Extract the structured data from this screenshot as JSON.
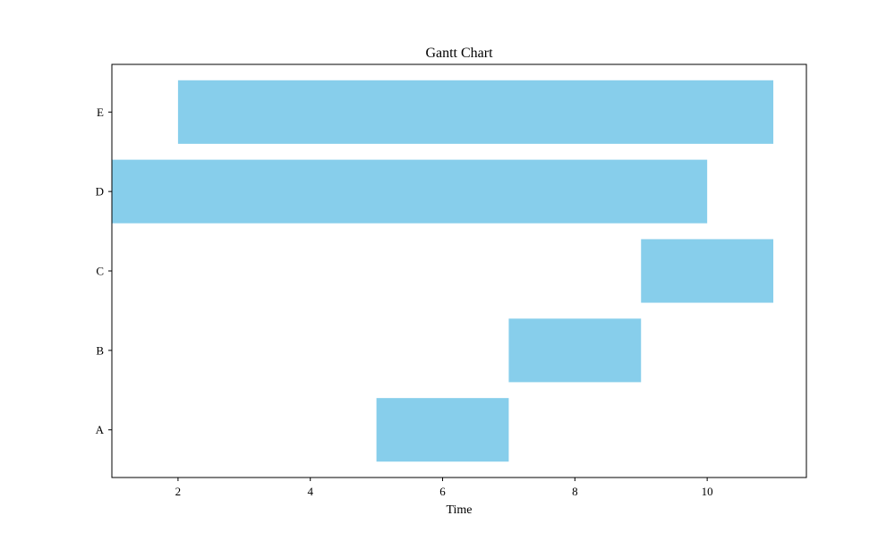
{
  "chart_data": {
    "type": "bar",
    "orientation": "horizontal",
    "title": "Gantt Chart",
    "xlabel": "Time",
    "ylabel": "",
    "xlim": [
      1,
      11.5
    ],
    "xticks": [
      2,
      4,
      6,
      8,
      10
    ],
    "categories": [
      "A",
      "B",
      "C",
      "D",
      "E"
    ],
    "tasks": [
      {
        "name": "A",
        "start": 5,
        "end": 7
      },
      {
        "name": "B",
        "start": 7,
        "end": 9
      },
      {
        "name": "C",
        "start": 9,
        "end": 11
      },
      {
        "name": "D",
        "start": 0,
        "end": 10
      },
      {
        "name": "E",
        "start": 2,
        "end": 11
      }
    ],
    "bar_color": "#87CEEB",
    "grid": false,
    "legend": "none"
  }
}
